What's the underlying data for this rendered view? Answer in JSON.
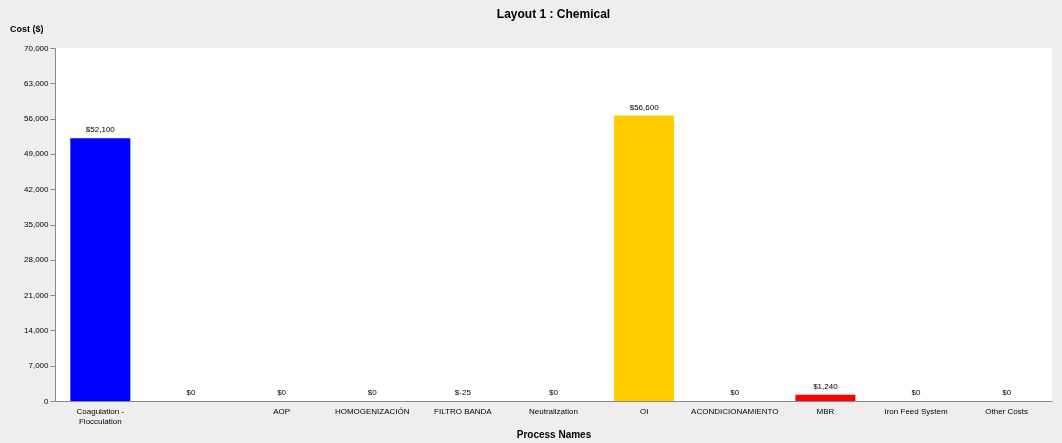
{
  "chart_data": {
    "type": "bar",
    "title": "Layout 1 : Chemical",
    "xlabel": "Process Names",
    "ylabel": "Cost ($)",
    "categories": [
      "Coagulation - Flocculation",
      null,
      "AOP",
      "HOMOGENIZACIÓN",
      "FILTRO BANDA",
      "Neutralization",
      "OI",
      "ACONDICIONAMIENTO",
      "MBR",
      "Iron Feed System",
      "Other Costs"
    ],
    "values": [
      52100,
      0,
      0,
      0,
      null,
      0,
      56600,
      0,
      1240,
      0,
      0
    ],
    "colors": [
      "#0000ff",
      "#0000ff",
      "#0000ff",
      "#0000ff",
      "#0000ff",
      "#0000ff",
      "#ffcc00",
      "#0000ff",
      "#ff0000",
      "#0000ff",
      "#0000ff"
    ],
    "value_labels": [
      "$52,100",
      "$0",
      "$0",
      "$0",
      "$-25",
      "$0",
      "$56,600",
      "$0",
      "$1,240",
      "$0",
      "$0"
    ],
    "ylim": [
      0,
      70000
    ],
    "yticks": [
      {
        "value": 0,
        "label": "0"
      },
      {
        "value": 7000,
        "label": "7,000"
      },
      {
        "value": 14000,
        "label": "14,000"
      },
      {
        "value": 21000,
        "label": "21,000"
      },
      {
        "value": 28000,
        "label": "28,000"
      },
      {
        "value": 35000,
        "label": "35,000"
      },
      {
        "value": 42000,
        "label": "42,000"
      },
      {
        "value": 49000,
        "label": "49,000"
      },
      {
        "value": 56000,
        "label": "56,000"
      },
      {
        "value": 63000,
        "label": "63,000"
      },
      {
        "value": 70000,
        "label": "70,000"
      }
    ],
    "grid": false
  }
}
